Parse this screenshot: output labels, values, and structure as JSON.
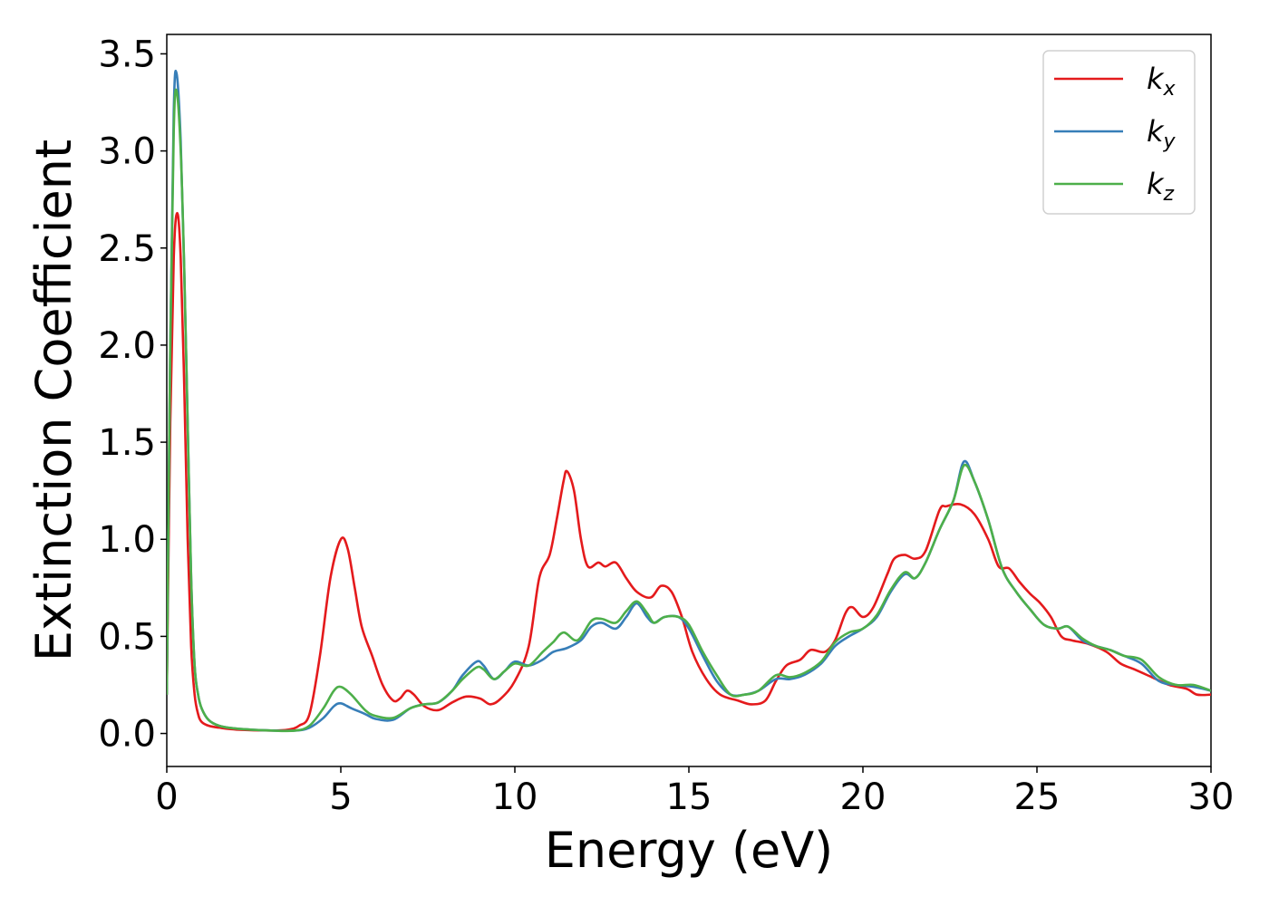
{
  "chart_data": {
    "type": "line",
    "title": "",
    "xlabel": "Energy (eV)",
    "ylabel": "Extinction Coefficient",
    "xlim": [
      0,
      30
    ],
    "ylim": [
      -0.17,
      3.6
    ],
    "xticks": [
      0,
      5,
      10,
      15,
      20,
      25,
      30
    ],
    "yticks": [
      0.0,
      0.5,
      1.0,
      1.5,
      2.0,
      2.5,
      3.0,
      3.5
    ],
    "xtick_labels": [
      "0",
      "5",
      "10",
      "15",
      "20",
      "25",
      "30"
    ],
    "ytick_labels": [
      "0.0",
      "0.5",
      "1.0",
      "1.5",
      "2.0",
      "2.5",
      "3.0",
      "3.5"
    ],
    "grid": false,
    "legend_position": "upper-right",
    "series": [
      {
        "name": "k_x",
        "legend_base": "k",
        "legend_sub": "x",
        "color": "#e41a1c",
        "points": [
          [
            0,
            0.2
          ],
          [
            0.1,
            1.6
          ],
          [
            0.2,
            2.45
          ],
          [
            0.3,
            2.68
          ],
          [
            0.4,
            2.45
          ],
          [
            0.5,
            1.8
          ],
          [
            0.6,
            1.0
          ],
          [
            0.7,
            0.45
          ],
          [
            0.8,
            0.2
          ],
          [
            0.9,
            0.1
          ],
          [
            1.0,
            0.06
          ],
          [
            1.2,
            0.04
          ],
          [
            1.5,
            0.03
          ],
          [
            2,
            0.02
          ],
          [
            3,
            0.015
          ],
          [
            3.5,
            0.02
          ],
          [
            3.8,
            0.04
          ],
          [
            4.1,
            0.1
          ],
          [
            4.4,
            0.4
          ],
          [
            4.7,
            0.8
          ],
          [
            5.0,
            1.0
          ],
          [
            5.2,
            0.95
          ],
          [
            5.4,
            0.75
          ],
          [
            5.6,
            0.55
          ],
          [
            5.9,
            0.4
          ],
          [
            6.2,
            0.25
          ],
          [
            6.5,
            0.17
          ],
          [
            6.7,
            0.18
          ],
          [
            6.9,
            0.22
          ],
          [
            7.1,
            0.2
          ],
          [
            7.4,
            0.14
          ],
          [
            7.8,
            0.12
          ],
          [
            8.2,
            0.16
          ],
          [
            8.6,
            0.19
          ],
          [
            9.0,
            0.18
          ],
          [
            9.3,
            0.15
          ],
          [
            9.6,
            0.18
          ],
          [
            10.0,
            0.27
          ],
          [
            10.4,
            0.45
          ],
          [
            10.7,
            0.8
          ],
          [
            11.0,
            0.92
          ],
          [
            11.2,
            1.1
          ],
          [
            11.4,
            1.3
          ],
          [
            11.5,
            1.35
          ],
          [
            11.7,
            1.25
          ],
          [
            11.9,
            1.0
          ],
          [
            12.1,
            0.86
          ],
          [
            12.4,
            0.88
          ],
          [
            12.6,
            0.86
          ],
          [
            12.9,
            0.88
          ],
          [
            13.2,
            0.8
          ],
          [
            13.5,
            0.73
          ],
          [
            13.9,
            0.7
          ],
          [
            14.2,
            0.76
          ],
          [
            14.5,
            0.73
          ],
          [
            14.8,
            0.6
          ],
          [
            15.1,
            0.42
          ],
          [
            15.5,
            0.28
          ],
          [
            15.9,
            0.2
          ],
          [
            16.4,
            0.17
          ],
          [
            16.8,
            0.15
          ],
          [
            17.2,
            0.17
          ],
          [
            17.5,
            0.27
          ],
          [
            17.8,
            0.35
          ],
          [
            18.2,
            0.38
          ],
          [
            18.5,
            0.43
          ],
          [
            18.9,
            0.42
          ],
          [
            19.2,
            0.48
          ],
          [
            19.5,
            0.62
          ],
          [
            19.7,
            0.65
          ],
          [
            20.0,
            0.6
          ],
          [
            20.3,
            0.65
          ],
          [
            20.7,
            0.82
          ],
          [
            20.9,
            0.9
          ],
          [
            21.2,
            0.92
          ],
          [
            21.5,
            0.9
          ],
          [
            21.8,
            0.94
          ],
          [
            22.2,
            1.15
          ],
          [
            22.4,
            1.17
          ],
          [
            22.8,
            1.18
          ],
          [
            23.2,
            1.13
          ],
          [
            23.6,
            1.0
          ],
          [
            23.9,
            0.86
          ],
          [
            24.2,
            0.85
          ],
          [
            24.5,
            0.78
          ],
          [
            24.8,
            0.72
          ],
          [
            25.1,
            0.67
          ],
          [
            25.4,
            0.6
          ],
          [
            25.7,
            0.5
          ],
          [
            26.0,
            0.48
          ],
          [
            26.5,
            0.46
          ],
          [
            27.0,
            0.42
          ],
          [
            27.4,
            0.36
          ],
          [
            27.8,
            0.33
          ],
          [
            28.3,
            0.29
          ],
          [
            28.8,
            0.25
          ],
          [
            29.3,
            0.23
          ],
          [
            29.6,
            0.2
          ],
          [
            30,
            0.2
          ]
        ]
      },
      {
        "name": "k_y",
        "legend_base": "k",
        "legend_sub": "y",
        "color": "#377eb8",
        "points": [
          [
            0,
            0.2
          ],
          [
            0.1,
            2.0
          ],
          [
            0.2,
            3.2
          ],
          [
            0.28,
            3.4
          ],
          [
            0.4,
            3.05
          ],
          [
            0.5,
            2.4
          ],
          [
            0.6,
            1.6
          ],
          [
            0.7,
            0.8
          ],
          [
            0.8,
            0.35
          ],
          [
            0.9,
            0.2
          ],
          [
            1.0,
            0.13
          ],
          [
            1.2,
            0.07
          ],
          [
            1.5,
            0.04
          ],
          [
            2,
            0.025
          ],
          [
            3,
            0.015
          ],
          [
            3.7,
            0.015
          ],
          [
            4.1,
            0.03
          ],
          [
            4.5,
            0.08
          ],
          [
            4.8,
            0.14
          ],
          [
            5.0,
            0.155
          ],
          [
            5.3,
            0.13
          ],
          [
            5.7,
            0.1
          ],
          [
            6.0,
            0.075
          ],
          [
            6.5,
            0.07
          ],
          [
            7.0,
            0.13
          ],
          [
            7.4,
            0.15
          ],
          [
            7.8,
            0.16
          ],
          [
            8.2,
            0.22
          ],
          [
            8.5,
            0.3
          ],
          [
            8.9,
            0.37
          ],
          [
            9.1,
            0.35
          ],
          [
            9.4,
            0.28
          ],
          [
            9.7,
            0.32
          ],
          [
            10.0,
            0.37
          ],
          [
            10.4,
            0.35
          ],
          [
            10.8,
            0.38
          ],
          [
            11.1,
            0.42
          ],
          [
            11.5,
            0.44
          ],
          [
            11.9,
            0.48
          ],
          [
            12.2,
            0.55
          ],
          [
            12.5,
            0.57
          ],
          [
            12.9,
            0.54
          ],
          [
            13.2,
            0.6
          ],
          [
            13.5,
            0.67
          ],
          [
            13.8,
            0.6
          ],
          [
            14.0,
            0.57
          ],
          [
            14.3,
            0.6
          ],
          [
            14.7,
            0.6
          ],
          [
            15.0,
            0.54
          ],
          [
            15.4,
            0.4
          ],
          [
            15.8,
            0.27
          ],
          [
            16.2,
            0.2
          ],
          [
            16.6,
            0.2
          ],
          [
            17.0,
            0.22
          ],
          [
            17.5,
            0.28
          ],
          [
            17.9,
            0.28
          ],
          [
            18.3,
            0.3
          ],
          [
            18.8,
            0.36
          ],
          [
            19.2,
            0.45
          ],
          [
            19.6,
            0.5
          ],
          [
            20.0,
            0.54
          ],
          [
            20.4,
            0.6
          ],
          [
            20.8,
            0.73
          ],
          [
            21.2,
            0.82
          ],
          [
            21.5,
            0.8
          ],
          [
            21.8,
            0.88
          ],
          [
            22.2,
            1.05
          ],
          [
            22.6,
            1.2
          ],
          [
            22.9,
            1.4
          ],
          [
            23.2,
            1.3
          ],
          [
            23.6,
            1.1
          ],
          [
            24.0,
            0.85
          ],
          [
            24.4,
            0.73
          ],
          [
            24.8,
            0.64
          ],
          [
            25.2,
            0.56
          ],
          [
            25.6,
            0.54
          ],
          [
            25.9,
            0.55
          ],
          [
            26.3,
            0.48
          ],
          [
            26.7,
            0.45
          ],
          [
            27.1,
            0.43
          ],
          [
            27.5,
            0.4
          ],
          [
            28.0,
            0.36
          ],
          [
            28.5,
            0.27
          ],
          [
            29.0,
            0.25
          ],
          [
            29.5,
            0.24
          ],
          [
            30,
            0.22
          ]
        ]
      },
      {
        "name": "k_z",
        "legend_base": "k",
        "legend_sub": "z",
        "color": "#4daf4a",
        "points": [
          [
            0,
            0.2
          ],
          [
            0.1,
            2.0
          ],
          [
            0.2,
            3.1
          ],
          [
            0.28,
            3.31
          ],
          [
            0.4,
            3.0
          ],
          [
            0.5,
            2.4
          ],
          [
            0.6,
            1.6
          ],
          [
            0.7,
            0.8
          ],
          [
            0.8,
            0.35
          ],
          [
            0.9,
            0.2
          ],
          [
            1.0,
            0.13
          ],
          [
            1.2,
            0.07
          ],
          [
            1.5,
            0.04
          ],
          [
            2,
            0.025
          ],
          [
            3,
            0.015
          ],
          [
            3.7,
            0.015
          ],
          [
            4.1,
            0.04
          ],
          [
            4.5,
            0.13
          ],
          [
            4.8,
            0.22
          ],
          [
            5.0,
            0.24
          ],
          [
            5.3,
            0.2
          ],
          [
            5.7,
            0.12
          ],
          [
            6.0,
            0.09
          ],
          [
            6.5,
            0.08
          ],
          [
            7.0,
            0.13
          ],
          [
            7.4,
            0.15
          ],
          [
            7.8,
            0.16
          ],
          [
            8.2,
            0.22
          ],
          [
            8.5,
            0.28
          ],
          [
            8.9,
            0.34
          ],
          [
            9.1,
            0.33
          ],
          [
            9.4,
            0.28
          ],
          [
            9.7,
            0.32
          ],
          [
            10.0,
            0.36
          ],
          [
            10.4,
            0.35
          ],
          [
            10.8,
            0.42
          ],
          [
            11.1,
            0.47
          ],
          [
            11.4,
            0.52
          ],
          [
            11.8,
            0.48
          ],
          [
            12.2,
            0.58
          ],
          [
            12.5,
            0.59
          ],
          [
            12.9,
            0.57
          ],
          [
            13.2,
            0.63
          ],
          [
            13.5,
            0.68
          ],
          [
            13.8,
            0.62
          ],
          [
            14.0,
            0.57
          ],
          [
            14.3,
            0.6
          ],
          [
            14.7,
            0.6
          ],
          [
            15.0,
            0.56
          ],
          [
            15.4,
            0.42
          ],
          [
            15.8,
            0.3
          ],
          [
            16.2,
            0.2
          ],
          [
            16.6,
            0.2
          ],
          [
            17.0,
            0.22
          ],
          [
            17.5,
            0.3
          ],
          [
            17.9,
            0.29
          ],
          [
            18.3,
            0.31
          ],
          [
            18.8,
            0.37
          ],
          [
            19.2,
            0.47
          ],
          [
            19.6,
            0.52
          ],
          [
            20.0,
            0.54
          ],
          [
            20.4,
            0.61
          ],
          [
            20.8,
            0.74
          ],
          [
            21.2,
            0.83
          ],
          [
            21.5,
            0.8
          ],
          [
            21.8,
            0.88
          ],
          [
            22.2,
            1.05
          ],
          [
            22.6,
            1.2
          ],
          [
            22.9,
            1.38
          ],
          [
            23.2,
            1.3
          ],
          [
            23.6,
            1.1
          ],
          [
            24.0,
            0.85
          ],
          [
            24.4,
            0.73
          ],
          [
            24.8,
            0.64
          ],
          [
            25.2,
            0.56
          ],
          [
            25.6,
            0.54
          ],
          [
            25.9,
            0.55
          ],
          [
            26.3,
            0.49
          ],
          [
            26.7,
            0.45
          ],
          [
            27.1,
            0.43
          ],
          [
            27.5,
            0.4
          ],
          [
            28.0,
            0.38
          ],
          [
            28.5,
            0.29
          ],
          [
            29.0,
            0.25
          ],
          [
            29.5,
            0.25
          ],
          [
            30,
            0.22
          ]
        ]
      }
    ]
  }
}
